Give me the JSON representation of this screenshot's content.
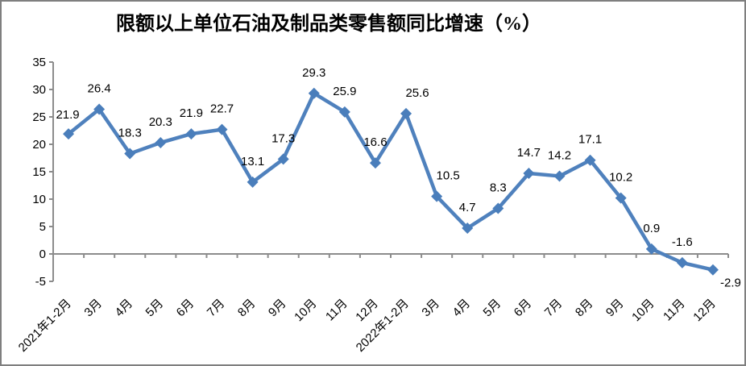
{
  "chart_data": {
    "type": "line",
    "title": "限额以上单位石油及制品类零售额同比增速（%）",
    "categories": [
      "2021年1-2月",
      "3月",
      "4月",
      "5月",
      "6月",
      "7月",
      "8月",
      "9月",
      "10月",
      "11月",
      "12月",
      "2022年1-2月",
      "3月",
      "4月",
      "5月",
      "6月",
      "7月",
      "8月",
      "9月",
      "10月",
      "11月",
      "12月"
    ],
    "values": [
      21.9,
      26.4,
      18.3,
      20.3,
      21.9,
      22.7,
      13.1,
      17.3,
      29.3,
      25.9,
      16.6,
      25.6,
      10.5,
      4.7,
      8.3,
      14.7,
      14.2,
      17.1,
      10.2,
      0.9,
      -1.6,
      -2.9
    ],
    "data_labels": [
      "21.9",
      "26.4",
      "18.3",
      "20.3",
      "21.9",
      "22.7",
      "13.1",
      "17.3",
      "29.3",
      "25.9",
      "16.6",
      "25.6",
      "10.5",
      "4.7",
      "8.3",
      "14.7",
      "14.2",
      "17.1",
      "10.2",
      "0.9",
      "-1.6",
      "-2.9"
    ],
    "ylim": [
      -5,
      35
    ],
    "y_ticks": [
      35,
      30,
      25,
      20,
      15,
      10,
      5,
      0,
      -5
    ],
    "y_tick_labels": [
      "35",
      "30",
      "25",
      "20",
      "15",
      "10",
      "5",
      "0",
      "-5"
    ],
    "xlabel": "",
    "ylabel": "",
    "grid": false,
    "legend": "none",
    "marker": "diamond",
    "colors": {
      "line": "#4F81BD",
      "marker": "#4A7EBB",
      "axis": "#8C8C8C",
      "text": "#000000",
      "frame_border": "#7F7F7F",
      "background": "#FFFFFF"
    }
  }
}
